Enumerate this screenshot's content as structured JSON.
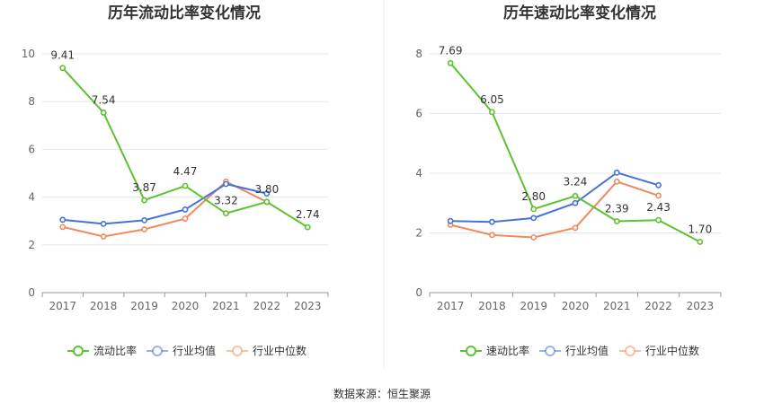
{
  "source": "数据来源：恒生聚源",
  "chart_data": [
    {
      "type": "line",
      "title": "历年流动比率变化情况",
      "x": [
        "2017",
        "2018",
        "2019",
        "2020",
        "2021",
        "2022",
        "2023"
      ],
      "ylim": [
        0,
        10
      ],
      "yticks": [
        "0",
        "2",
        "4",
        "6",
        "8",
        "10"
      ],
      "grid": true,
      "legend_position": "bottom",
      "series": [
        {
          "name": "流动比率",
          "color": "#5cc22f",
          "values": [
            9.41,
            7.54,
            3.87,
            4.47,
            3.32,
            3.8,
            2.74
          ],
          "labels": [
            "9.41",
            "7.54",
            "3.87",
            "4.47",
            "3.32",
            "3.80",
            "2.74"
          ]
        },
        {
          "name": "行业均值",
          "color": "#4472d9",
          "values": [
            3.05,
            2.88,
            3.03,
            3.48,
            4.55,
            4.15,
            null
          ]
        },
        {
          "name": "行业中位数",
          "color": "#f08a5d",
          "values": [
            2.75,
            2.35,
            2.65,
            3.1,
            4.65,
            3.8,
            null
          ]
        }
      ]
    },
    {
      "type": "line",
      "title": "历年速动比率变化情况",
      "x": [
        "2017",
        "2018",
        "2019",
        "2020",
        "2021",
        "2022",
        "2023"
      ],
      "ylim": [
        0,
        8
      ],
      "yticks": [
        "0",
        "2",
        "4",
        "6",
        "8"
      ],
      "grid": true,
      "legend_position": "bottom",
      "series": [
        {
          "name": "速动比率",
          "color": "#5cc22f",
          "values": [
            7.69,
            6.05,
            2.8,
            3.24,
            2.39,
            2.43,
            1.7
          ],
          "labels": [
            "7.69",
            "6.05",
            "2.80",
            "3.24",
            "2.39",
            "2.43",
            "1.70"
          ]
        },
        {
          "name": "行业均值",
          "color": "#4472d9",
          "values": [
            2.4,
            2.37,
            2.5,
            3.0,
            4.02,
            3.6,
            null
          ]
        },
        {
          "name": "行业中位数",
          "color": "#f08a5d",
          "values": [
            2.27,
            1.93,
            1.85,
            2.17,
            3.72,
            3.25,
            null
          ]
        }
      ]
    }
  ]
}
